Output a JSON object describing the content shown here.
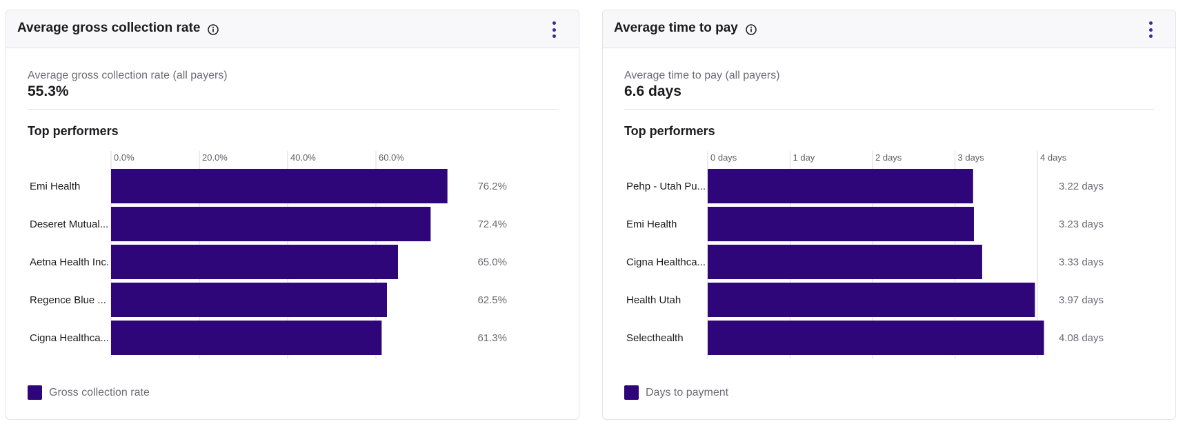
{
  "colors": {
    "bar": "#2f067a",
    "axis_line": "#d9d9df",
    "tick_text": "#5f5f6a",
    "value_text": "#6b6b76",
    "accent": "#3d2a96"
  },
  "icons": {
    "info": "info-icon",
    "menu": "kebab-menu-icon"
  },
  "cards": [
    {
      "title": "Average gross collection rate",
      "summary_label": "Average gross collection rate (all payers)",
      "summary_value": "55.3%",
      "section_title": "Top performers",
      "legend_label": "Gross collection rate",
      "chart_data": {
        "type": "bar",
        "orientation": "horizontal",
        "categories": [
          "Emi Health",
          "Deseret Mutual...",
          "Aetna Health Inc.",
          "Regence Blue ...",
          "Cigna Healthca..."
        ],
        "values": [
          76.2,
          72.4,
          65.0,
          62.5,
          61.3
        ],
        "value_labels": [
          "76.2%",
          "72.4%",
          "65.0%",
          "62.5%",
          "61.3%"
        ],
        "x_ticks": [
          0,
          20,
          40,
          60
        ],
        "x_tick_labels": [
          "0.0%",
          "20.0%",
          "40.0%",
          "60.0%"
        ],
        "xlim": [
          0,
          80
        ],
        "legend": "bottom-left",
        "grid": false
      }
    },
    {
      "title": "Average time to pay",
      "summary_label": "Average time to pay (all payers)",
      "summary_value": "6.6 days",
      "section_title": "Top performers",
      "legend_label": "Days to payment",
      "chart_data": {
        "type": "bar",
        "orientation": "horizontal",
        "categories": [
          "Pehp - Utah Pu...",
          "Emi Health",
          "Cigna Healthca...",
          "Health Utah",
          "Selecthealth"
        ],
        "values": [
          3.22,
          3.23,
          3.33,
          3.97,
          4.08
        ],
        "value_labels": [
          "3.22 days",
          "3.23 days",
          "3.33 days",
          "3.97 days",
          "4.08 days"
        ],
        "x_ticks": [
          0,
          1,
          2,
          3,
          4
        ],
        "x_tick_labels": [
          "0 days",
          "1 day",
          "2 days",
          "3 days",
          "4 days"
        ],
        "xlim": [
          0,
          4.2
        ],
        "legend": "bottom-left",
        "grid": false
      }
    }
  ]
}
